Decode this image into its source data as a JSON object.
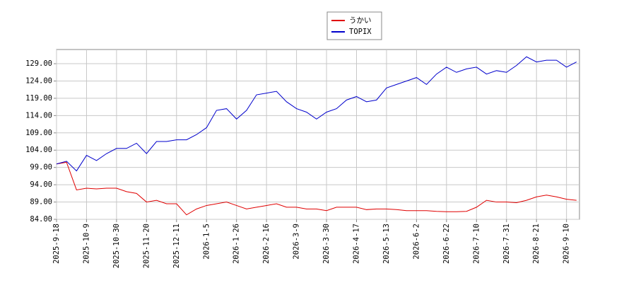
{
  "chart_data": {
    "type": "line",
    "categories": [
      "2025-9-18",
      null,
      null,
      "2025-10-9",
      null,
      null,
      "2025-10-30",
      null,
      null,
      "2025-11-20",
      null,
      null,
      "2025-12-11",
      null,
      null,
      "2026-1-5",
      null,
      null,
      "2026-1-26",
      null,
      null,
      "2026-2-16",
      null,
      null,
      "2026-3-9",
      null,
      null,
      "2026-3-30",
      null,
      null,
      "2026-4-17",
      null,
      null,
      "2026-5-13",
      null,
      null,
      "2026-6-2",
      null,
      null,
      "2026-6-22",
      null,
      null,
      "2026-7-10",
      null,
      null,
      "2026-7-31",
      null,
      null,
      "2026-8-21",
      null,
      null,
      "2026-9-10",
      null
    ],
    "series": [
      {
        "name": "うかい",
        "color": "#e00000",
        "values": [
          100,
          100.5,
          92.5,
          93,
          92.8,
          93,
          93,
          92,
          91.5,
          89,
          89.5,
          88.5,
          88.5,
          85.3,
          87,
          88,
          88.5,
          89,
          88,
          87,
          87.5,
          88,
          88.5,
          87.5,
          87.5,
          87,
          87,
          86.5,
          87.5,
          87.5,
          87.5,
          86.8,
          87,
          87,
          86.8,
          86.5,
          86.5,
          86.5,
          86.3,
          86.2,
          86.2,
          86.3,
          87.5,
          89.5,
          89,
          89,
          88.8,
          89.5,
          90.5,
          91,
          90.5,
          89.8,
          89.5
        ]
      },
      {
        "name": "TOPIX",
        "color": "#0000cc",
        "values": [
          100,
          100.8,
          98,
          102.5,
          101,
          103,
          104.5,
          104.5,
          106,
          103,
          106.5,
          106.5,
          107,
          107,
          108.5,
          110.5,
          115.5,
          116,
          113,
          115.5,
          120,
          120.5,
          121,
          118,
          116,
          115,
          113,
          115,
          116,
          118.5,
          119.5,
          118,
          118.5,
          122,
          123,
          124,
          125,
          123,
          126,
          128,
          126.5,
          127.5,
          128,
          126,
          127,
          126.5,
          128.5,
          131,
          129.5,
          130,
          130,
          128,
          129.5
        ]
      }
    ],
    "ylim": [
      84,
      133.1
    ],
    "yticks": [
      {
        "value": 84,
        "label": "84.00"
      },
      {
        "value": 89,
        "label": "89.00"
      },
      {
        "value": 94,
        "label": "94.00"
      },
      {
        "value": 99,
        "label": "99.00"
      },
      {
        "value": 104,
        "label": "104.00"
      },
      {
        "value": 109,
        "label": "109.00"
      },
      {
        "value": 114,
        "label": "114.00"
      },
      {
        "value": 119,
        "label": "119.00"
      },
      {
        "value": 124,
        "label": "124.00"
      },
      {
        "value": 129,
        "label": "129.00"
      }
    ],
    "grid": true
  }
}
